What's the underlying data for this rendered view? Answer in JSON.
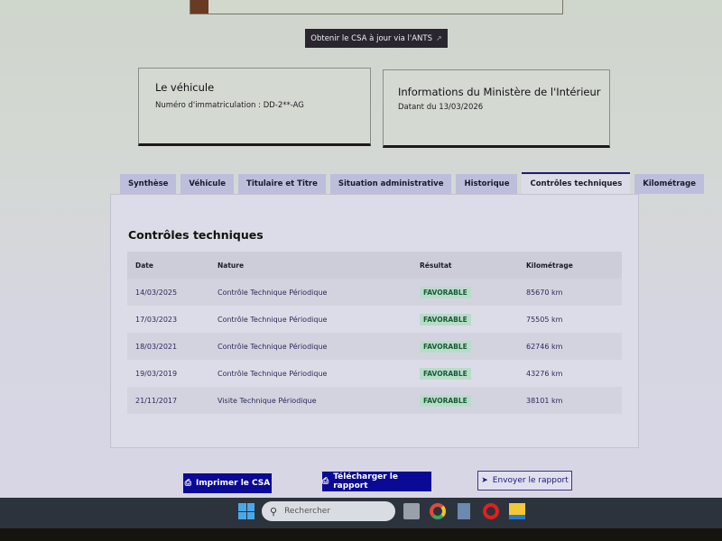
{
  "ants_button": {
    "label": "Obtenir le CSA à jour via l'ANTS",
    "icon": "external-link-icon"
  },
  "vehicle_card": {
    "title": "Le véhicule",
    "registration": "Numéro d'immatriculation : DD-2**-AG"
  },
  "ministry_card": {
    "title": "Informations du Ministère de l'Intérieur",
    "date": "Datant du 13/03/2026"
  },
  "tabs": [
    {
      "label": "Synthèse"
    },
    {
      "label": "Véhicule"
    },
    {
      "label": "Titulaire et Titre"
    },
    {
      "label": "Situation administrative"
    },
    {
      "label": "Historique"
    },
    {
      "label": "Contrôles techniques",
      "active": true
    },
    {
      "label": "Kilométrage"
    }
  ],
  "section": {
    "title": "Contrôles techniques",
    "columns": [
      "Date",
      "Nature",
      "Résultat",
      "Kilométrage"
    ],
    "rows": [
      [
        "14/03/2025",
        "Contrôle Technique Périodique",
        "FAVORABLE",
        "85670 km"
      ],
      [
        "17/03/2023",
        "Contrôle Technique Périodique",
        "FAVORABLE",
        "75505 km"
      ],
      [
        "18/03/2021",
        "Contrôle Technique Périodique",
        "FAVORABLE",
        "62746 km"
      ],
      [
        "19/03/2019",
        "Contrôle Technique Périodique",
        "FAVORABLE",
        "43276 km"
      ],
      [
        "21/11/2017",
        "Visite Technique Périodique",
        "FAVORABLE",
        "38101 km"
      ]
    ]
  },
  "actions": {
    "print": "Imprimer le CSA",
    "download": "Télécharger le rapport",
    "send": "Envoyer le rapport"
  },
  "taskbar": {
    "search_placeholder": "Rechercher"
  },
  "colors": {
    "primary": "#0a0a96",
    "success_bg": "#b8dcc8",
    "success_text": "#1a5a3a"
  }
}
